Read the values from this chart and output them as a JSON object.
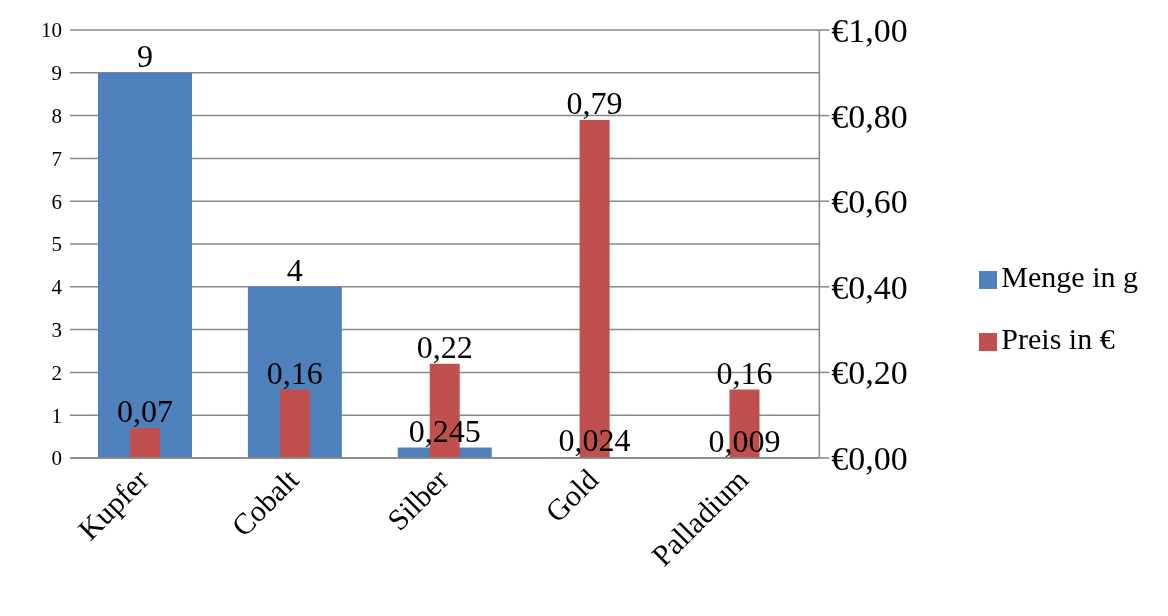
{
  "chart_data": {
    "type": "bar",
    "categories": [
      "Kupfer",
      "Cobalt",
      "Silber",
      "Gold",
      "Palladium"
    ],
    "series": [
      {
        "name": "Menge in g",
        "color": "#4f81bd",
        "values": [
          9,
          4,
          0.245,
          0.024,
          0.009
        ],
        "value_labels": [
          "9",
          "4",
          "0,245",
          "0,024",
          "0,009"
        ]
      },
      {
        "name": "Preis in €",
        "color": "#c0504d",
        "axis": "y2",
        "values": [
          0.07,
          0.16,
          0.22,
          0.79,
          0.16
        ],
        "value_labels": [
          "0,07",
          "0,16",
          "0,22",
          "0,79",
          "0,16"
        ]
      }
    ],
    "ylim": [
      0,
      10
    ],
    "yticks": [
      0,
      1,
      2,
      3,
      4,
      5,
      6,
      7,
      8,
      9,
      10
    ],
    "y2lim": [
      0,
      1
    ],
    "y2ticks": [
      {
        "value": 0,
        "label": "€0,00"
      },
      {
        "value": 0.2,
        "label": "€0,20"
      },
      {
        "value": 0.4,
        "label": "€0,40"
      },
      {
        "value": 0.6,
        "label": "€0,60"
      },
      {
        "value": 0.8,
        "label": "€0,80"
      },
      {
        "value": 1,
        "label": "€1,00"
      }
    ],
    "grid": "y",
    "legend": "right"
  }
}
